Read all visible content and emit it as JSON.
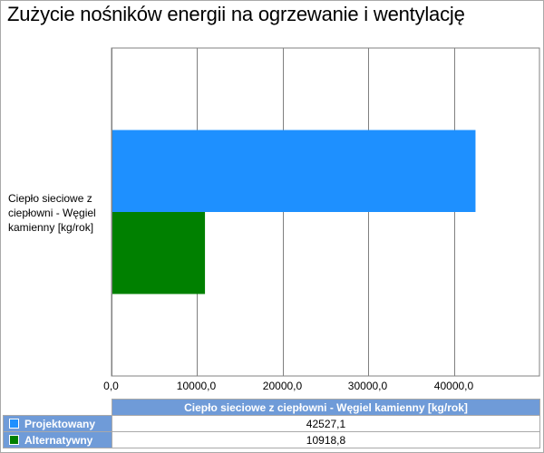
{
  "title": "Zużycie nośników energii na ogrzewanie i wentylację",
  "colors": {
    "projektowany": "#1e90ff",
    "alternatywny": "#008000",
    "table_header": "#6f9bd8",
    "grid": "#808080"
  },
  "chart_data": {
    "type": "bar",
    "orientation": "horizontal",
    "categories": [
      "Ciepło sieciowe z ciepłowni - Węgiel kamienny [kg/rok]"
    ],
    "series": [
      {
        "name": "Projektowany",
        "values": [
          42527.1
        ],
        "color": "#1e90ff"
      },
      {
        "name": "Alternatywny",
        "values": [
          10918.8
        ],
        "color": "#008000"
      }
    ],
    "xlim": [
      0,
      50000
    ],
    "x_ticks": [
      0,
      10000,
      20000,
      30000,
      40000
    ],
    "x_tick_labels": [
      "0,0",
      "10000,0",
      "20000,0",
      "30000,0",
      "40000,0"
    ],
    "grid": true,
    "legend": "data-table-bottom"
  },
  "table": {
    "header": "Ciepło sieciowe z ciepłowni - Węgiel kamienny [kg/rok]",
    "rows": [
      {
        "label": "Projektowany",
        "value": "42527,1"
      },
      {
        "label": "Alternatywny",
        "value": "10918,8"
      }
    ]
  }
}
